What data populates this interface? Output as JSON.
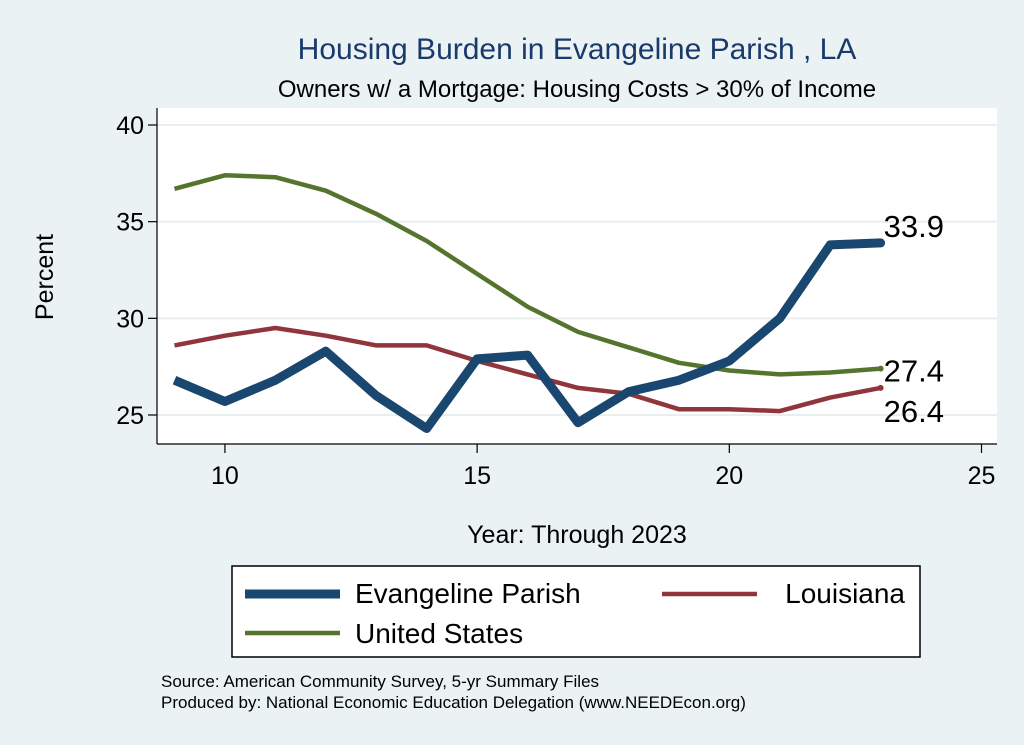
{
  "chart_data": {
    "type": "line",
    "title": "Housing Burden in Evangeline Parish , LA",
    "subtitle": "Owners w/ a Mortgage: Housing Costs > 30% of Income",
    "xlabel": "Year: Through 2023",
    "ylabel": "Percent",
    "xlim": [
      9,
      25
    ],
    "ylim": [
      23.5,
      40.5
    ],
    "xticks": [
      10,
      15,
      20,
      25
    ],
    "yticks": [
      25,
      30,
      35,
      40
    ],
    "grid": true,
    "x": [
      9,
      10,
      11,
      12,
      13,
      14,
      15,
      16,
      17,
      18,
      19,
      20,
      21,
      22,
      23
    ],
    "series": [
      {
        "name": "Evangeline Parish",
        "color": "#1a476f",
        "width": 9,
        "values": [
          26.8,
          25.7,
          26.8,
          28.3,
          26.0,
          24.3,
          27.9,
          28.1,
          24.6,
          26.2,
          26.8,
          27.8,
          30.0,
          33.8,
          33.9
        ],
        "end_label": "33.9"
      },
      {
        "name": "Louisiana",
        "color": "#90353b",
        "width": 4.5,
        "values": [
          28.6,
          29.1,
          29.5,
          29.1,
          28.6,
          28.6,
          27.8,
          27.1,
          26.4,
          26.1,
          25.3,
          25.3,
          25.2,
          25.9,
          26.4
        ],
        "end_label": "26.4"
      },
      {
        "name": "United States",
        "color": "#55752f",
        "width": 4.5,
        "values": [
          36.7,
          37.4,
          37.3,
          36.6,
          35.4,
          34.0,
          32.3,
          30.6,
          29.3,
          28.5,
          27.7,
          27.3,
          27.1,
          27.2,
          27.4
        ],
        "end_label": "27.4"
      }
    ],
    "legend": {
      "position": "bottom"
    },
    "notes": [
      "Source: American Community Survey, 5-yr Summary Files",
      "Produced by: National Economic Education Delegation (www.NEEDEcon.org)"
    ]
  }
}
